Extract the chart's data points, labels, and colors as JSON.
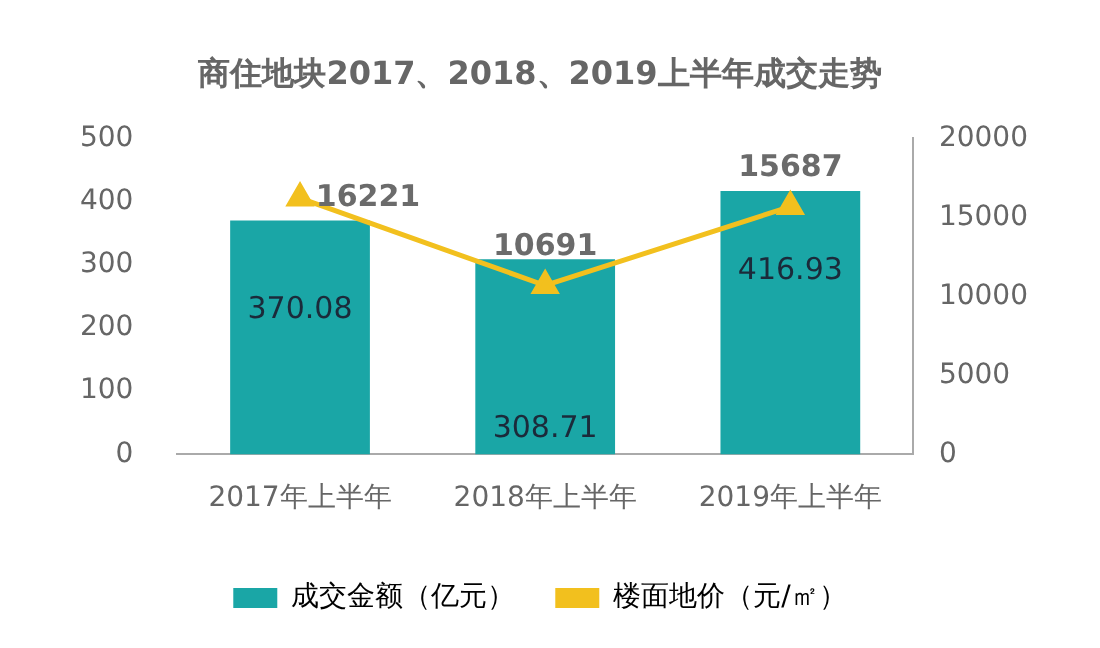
{
  "chart_data": {
    "type": "bar",
    "title": "商住地块2017、2018、2019上半年成交走势",
    "categories": [
      "2017年上半年",
      "2018年上半年",
      "2019年上半年"
    ],
    "series": [
      {
        "name": "成交金额（亿元）",
        "color": "#1aa6a6",
        "values": [
          370.08,
          308.71,
          416.93
        ]
      },
      {
        "name": "楼面地价（元/㎡）",
        "type": "line",
        "axis": "y2",
        "color": "#f2c01e",
        "marker": "triangle",
        "values": [
          16221,
          10691,
          15687
        ]
      }
    ],
    "ylim": [
      0,
      500
    ],
    "yticks": [
      0,
      100,
      200,
      300,
      400,
      500
    ],
    "y2lim": [
      0,
      20000
    ],
    "y2ticks": [
      0,
      5000,
      10000,
      15000,
      20000
    ],
    "data_labels": true,
    "legend": "bottom",
    "grid": false
  }
}
